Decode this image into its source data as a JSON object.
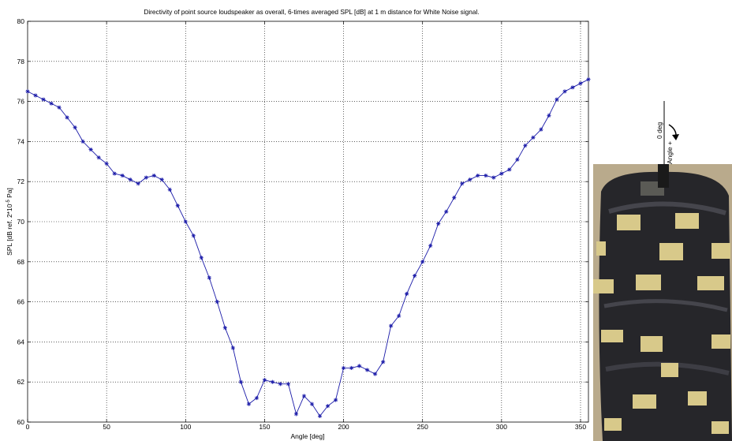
{
  "chart_data": {
    "type": "line",
    "title": "Directivity of point source loudspeaker as overall, 6-times averaged SPL [dB] at 1 m distance for White Noise signal.",
    "xlabel": "Angle [deg]",
    "ylabel_base": "SPL [dB ref. 2*10",
    "ylabel_exp": "-5",
    "ylabel_unit": " Pa]",
    "xlim": [
      0,
      355
    ],
    "ylim": [
      60,
      80
    ],
    "xticks": [
      0,
      50,
      100,
      150,
      200,
      250,
      300,
      350
    ],
    "yticks": [
      60,
      62,
      64,
      66,
      68,
      70,
      72,
      74,
      76,
      78,
      80
    ],
    "xtick_labels": [
      "0",
      "50",
      "100",
      "150",
      "200",
      "250",
      "300",
      "350"
    ],
    "ytick_labels": [
      "60",
      "62",
      "64",
      "66",
      "68",
      "70",
      "72",
      "74",
      "76",
      "78",
      "80"
    ],
    "grid": true,
    "marker": "star",
    "line_color": "#1a1aa8",
    "x": [
      0,
      5,
      10,
      15,
      20,
      25,
      30,
      35,
      40,
      45,
      50,
      55,
      60,
      65,
      70,
      75,
      80,
      85,
      90,
      95,
      100,
      105,
      110,
      115,
      120,
      125,
      130,
      135,
      140,
      145,
      150,
      155,
      160,
      165,
      170,
      175,
      180,
      185,
      190,
      195,
      200,
      205,
      210,
      215,
      220,
      225,
      230,
      235,
      240,
      245,
      250,
      255,
      260,
      265,
      270,
      275,
      280,
      285,
      290,
      295,
      300,
      305,
      310,
      315,
      320,
      325,
      330,
      335,
      340,
      345,
      350,
      355
    ],
    "y": [
      76.5,
      76.3,
      76.1,
      75.9,
      75.7,
      75.2,
      74.7,
      74.0,
      73.6,
      73.2,
      72.9,
      72.4,
      72.3,
      72.1,
      71.9,
      72.2,
      72.3,
      72.1,
      71.6,
      70.8,
      70.0,
      69.3,
      68.2,
      67.2,
      66.0,
      64.7,
      63.7,
      62.0,
      60.9,
      61.2,
      62.1,
      62.0,
      61.9,
      61.9,
      60.4,
      61.3,
      60.9,
      60.3,
      60.8,
      61.1,
      62.7,
      62.7,
      62.8,
      62.6,
      62.4,
      63.0,
      64.8,
      65.3,
      66.4,
      67.3,
      68.0,
      68.8,
      69.9,
      70.5,
      71.2,
      71.9,
      72.1,
      72.3,
      72.3,
      72.2,
      72.4,
      72.6,
      73.1,
      73.8,
      74.2,
      74.6,
      75.3,
      76.1,
      76.5,
      76.7,
      76.9,
      77.1
    ]
  },
  "inset": {
    "zero_label": "0 deg",
    "angle_label": "Angle +",
    "photo_colors": {
      "wrap": "#2b2b2e",
      "tape": "#d8c98a",
      "background": "#b8a888"
    }
  }
}
